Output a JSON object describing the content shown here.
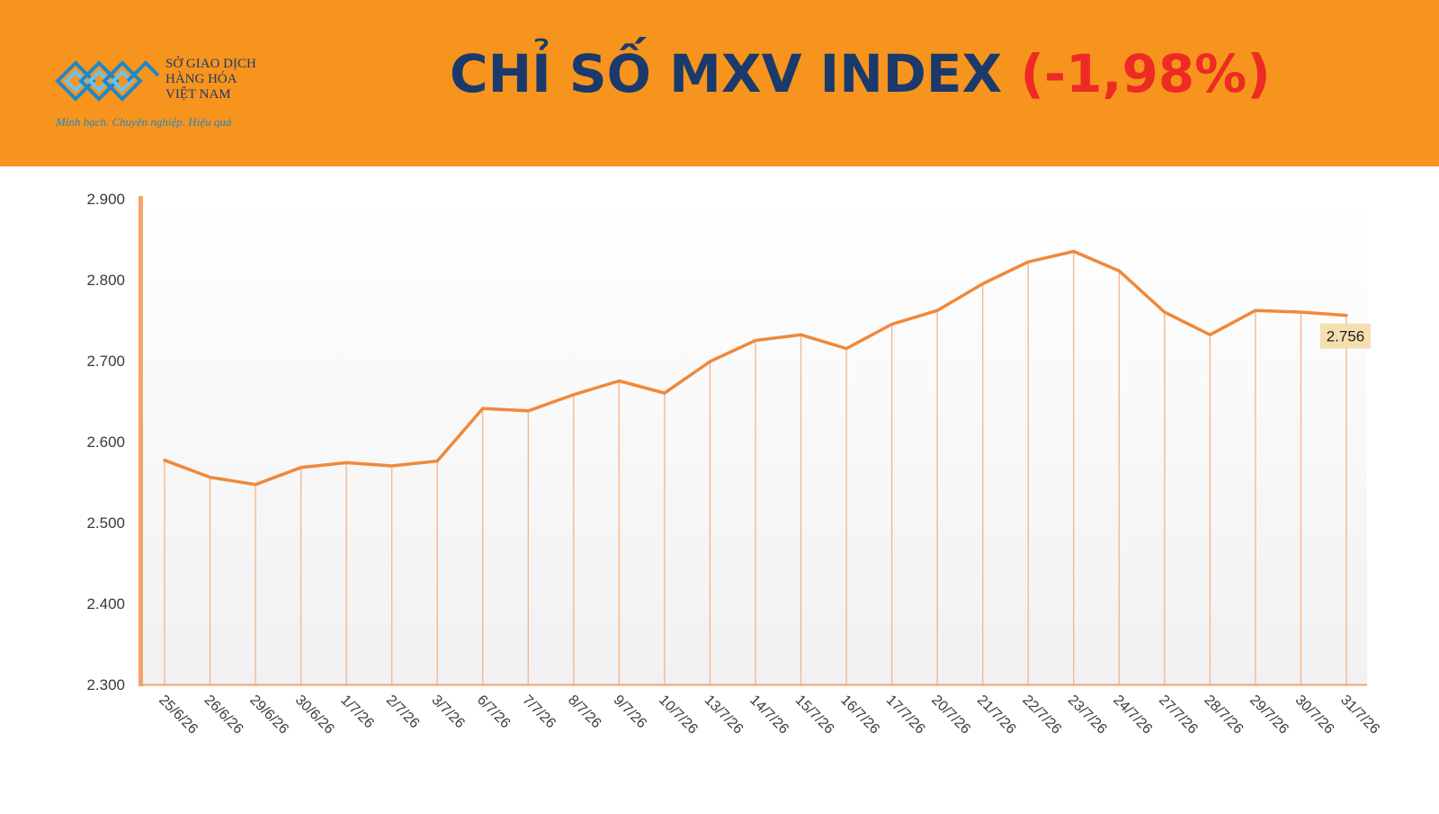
{
  "header": {
    "title": "CHỈ SỐ MXV INDEX",
    "change": "(-1,98%)"
  },
  "logo": {
    "line1": "SỞ GIAO DỊCH",
    "line2": "HÀNG HÓA",
    "line3": "VIỆT NAM",
    "tagline": "Minh bạch. Chuyên nghiệp. Hiệu quả"
  },
  "colors": {
    "header_bg": "#f7941d",
    "title": "#1b3a6b",
    "change": "#ee2a24",
    "line": "#f0883a"
  },
  "chart_data": {
    "type": "line",
    "title": "CHỈ SỐ MXV INDEX",
    "categories": [
      "25/6/26",
      "26/6/26",
      "29/6/26",
      "30/6/26",
      "1/7/26",
      "2/7/26",
      "3/7/26",
      "6/7/26",
      "7/7/26",
      "8/7/26",
      "9/7/26",
      "10/7/26",
      "13/7/26",
      "14/7/26",
      "15/7/26",
      "16/7/26",
      "17/7/26",
      "20/7/26",
      "21/7/26",
      "22/7/26",
      "23/7/26",
      "24/7/26",
      "27/7/26",
      "28/7/26",
      "29/7/26",
      "30/7/26",
      "31/7/26"
    ],
    "values": [
      2577,
      2556,
      2547,
      2568,
      2574,
      2570,
      2576,
      2641,
      2638,
      2658,
      2675,
      2660,
      2699,
      2725,
      2732,
      2715,
      2745,
      2762,
      2795,
      2822,
      2835,
      2811,
      2760,
      2732,
      2762,
      2760,
      2756
    ],
    "yticks": [
      "2.300",
      "2.400",
      "2.500",
      "2.600",
      "2.700",
      "2.800",
      "2.900"
    ],
    "ylim": [
      2300,
      2900
    ],
    "last_value_label": "2.756",
    "grid": false,
    "legend": "none"
  }
}
